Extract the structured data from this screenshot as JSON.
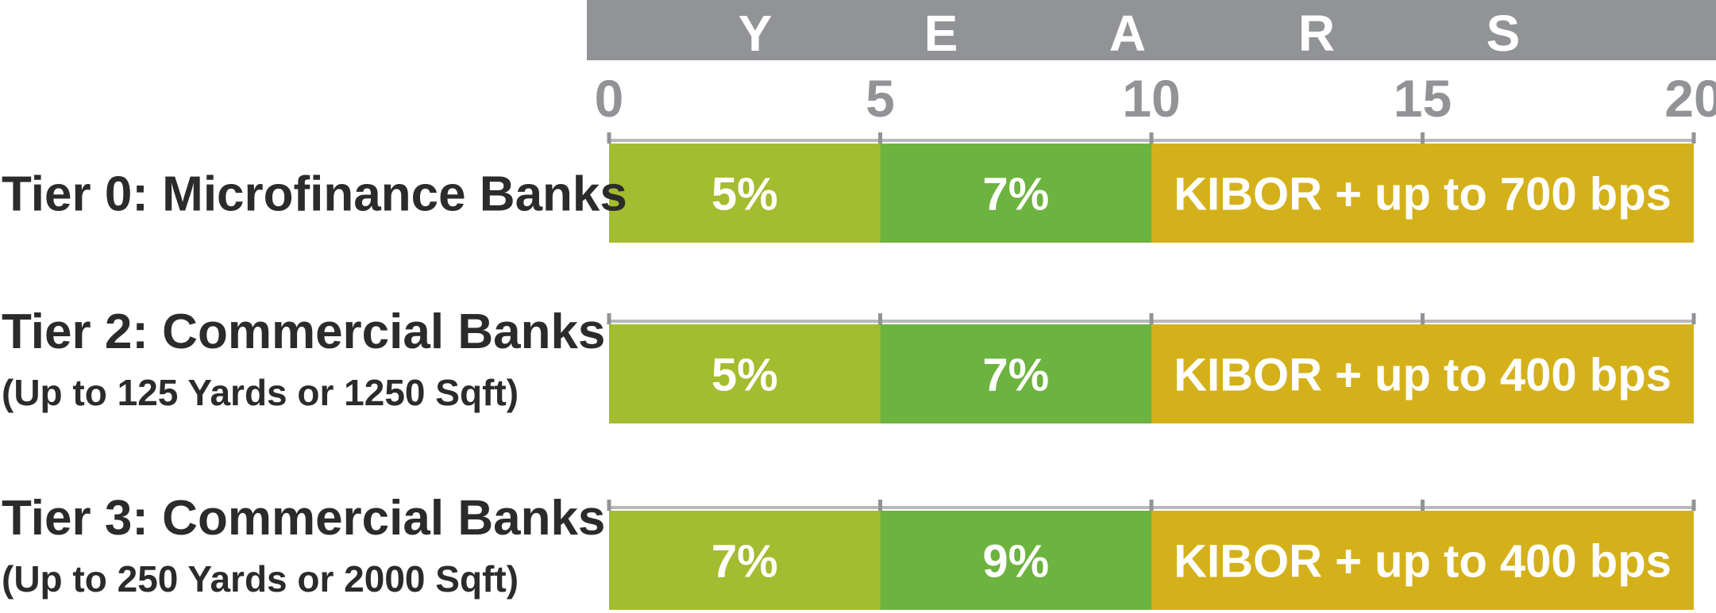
{
  "header": {
    "letters": [
      "Y",
      "E",
      "A",
      "R",
      "S"
    ],
    "bar_color": "#929397"
  },
  "chart_data": {
    "type": "bar",
    "orientation": "horizontal-stacked",
    "axis_label": "YEARS",
    "xlim": [
      0,
      20
    ],
    "ticks": [
      0,
      5,
      10,
      15,
      20
    ],
    "tick_labels": [
      "0",
      "5",
      "10",
      "15",
      "20"
    ],
    "colors": {
      "years_0_5": "#a3bc30",
      "years_5_10": "#6db33f",
      "years_10_20": "#d4b11b",
      "axis": "#929397"
    },
    "rows": [
      {
        "title": "Tier 0: Microfinance Banks",
        "subtitle": "",
        "segments": [
          {
            "start": 0,
            "end": 5,
            "label": "5%",
            "color": "#a3bc30"
          },
          {
            "start": 5,
            "end": 10,
            "label": "7%",
            "color": "#6db33f"
          },
          {
            "start": 10,
            "end": 20,
            "label": "KIBOR + up to 700 bps",
            "color": "#d4b11b"
          }
        ]
      },
      {
        "title": "Tier 2: Commercial Banks",
        "subtitle": "(Up to 125 Yards or 1250 Sqft)",
        "segments": [
          {
            "start": 0,
            "end": 5,
            "label": "5%",
            "color": "#a3bc30"
          },
          {
            "start": 5,
            "end": 10,
            "label": "7%",
            "color": "#6db33f"
          },
          {
            "start": 10,
            "end": 20,
            "label": "KIBOR + up to 400 bps",
            "color": "#d4b11b"
          }
        ]
      },
      {
        "title": "Tier 3: Commercial Banks",
        "subtitle": "(Up to 250 Yards or 2000 Sqft)",
        "segments": [
          {
            "start": 0,
            "end": 5,
            "label": "7%",
            "color": "#a3bc30"
          },
          {
            "start": 5,
            "end": 10,
            "label": "9%",
            "color": "#6db33f"
          },
          {
            "start": 10,
            "end": 20,
            "label": "KIBOR + up to 400 bps",
            "color": "#d4b11b"
          }
        ]
      }
    ]
  }
}
